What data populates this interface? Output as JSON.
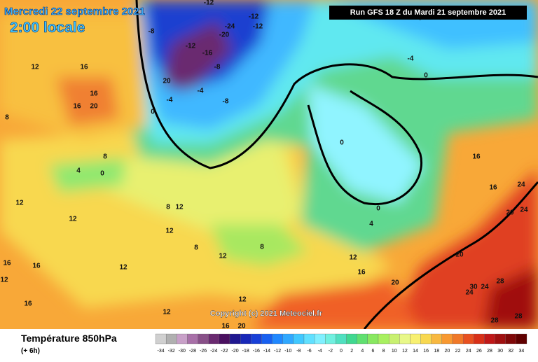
{
  "header": {
    "title": "Mercredi 22 septembre 2021",
    "time": "2:00 locale",
    "run": "Run GFS 18 Z du Mardi 21 septembre 2021"
  },
  "copyright": "Copyright (c) 2021 Meteociel.fr",
  "footer": {
    "field": "Température 850hPa",
    "step": "(+ 6h)"
  },
  "scale": {
    "values": [
      -34,
      -32,
      -30,
      -28,
      -26,
      -24,
      -22,
      -20,
      -18,
      -16,
      -14,
      -12,
      -10,
      -8,
      -6,
      -4,
      -2,
      0,
      2,
      4,
      6,
      8,
      10,
      12,
      14,
      16,
      18,
      20,
      22,
      24,
      26,
      28,
      30,
      32,
      34
    ],
    "colors": [
      "#d0d0d0",
      "#b0b0b0",
      "#c8a0c8",
      "#a870a8",
      "#885088",
      "#6a2a70",
      "#4a1060",
      "#201890",
      "#1828b8",
      "#1840d8",
      "#1860f0",
      "#2088ff",
      "#30a8ff",
      "#40c8ff",
      "#60e0ff",
      "#80f0ff",
      "#70f0e0",
      "#50e0c0",
      "#40d890",
      "#60e070",
      "#88e860",
      "#a8f060",
      "#c8f070",
      "#e8f888",
      "#f8f070",
      "#f8d850",
      "#f8b840",
      "#f89830",
      "#f07828",
      "#e85020",
      "#d83018",
      "#c01818",
      "#a01010",
      "#800808",
      "#600000"
    ]
  },
  "map_labels": [
    -12,
    -12,
    -8,
    -24,
    -12,
    -20,
    -12,
    -16,
    -8,
    -4,
    -8,
    20,
    -4,
    0,
    12,
    12,
    16,
    16,
    20,
    16,
    8,
    4,
    0,
    8,
    12,
    12,
    8,
    12,
    12,
    8,
    12,
    8,
    12,
    16,
    20,
    -4,
    0,
    -8,
    0,
    0,
    4,
    12,
    16,
    20,
    20,
    24,
    24,
    20,
    16,
    16,
    28,
    24,
    30,
    24,
    28,
    28,
    16,
    16,
    16,
    12,
    12,
    12
  ]
}
